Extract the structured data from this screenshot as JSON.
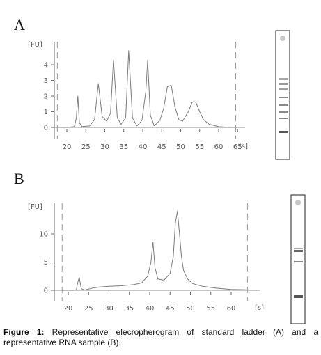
{
  "chart_data": [
    {
      "type": "line",
      "panel_label": "A",
      "ylabel": "[FU]",
      "x_unit": "[s]",
      "x_ticks": [
        20,
        25,
        30,
        35,
        40,
        45,
        50,
        55,
        60,
        65
      ],
      "x_tick_labels": [
        "20",
        "25",
        "30",
        "35",
        "40",
        "45",
        "50",
        "55",
        "60",
        "65"
      ],
      "y_ticks": [
        0,
        1,
        2,
        3,
        4
      ],
      "y_tick_labels": [
        "0",
        "1",
        "2",
        "3",
        "4"
      ],
      "xlim": [
        17.5,
        67
      ],
      "ylim": [
        -0.2,
        5.5
      ],
      "marker_lines_x": [
        17.5,
        64.5
      ],
      "series": [
        {
          "x": [
            17.5,
            20,
            22,
            22.5,
            22.9,
            23.3,
            24,
            26,
            27.3,
            28.3,
            29.3,
            30.5,
            31.5,
            32.3,
            33.3,
            34.3,
            35.5,
            36.3,
            37.3,
            38.5,
            39.8,
            40.8,
            41.3,
            42.0,
            43.0,
            44.5,
            45.5,
            46.5,
            47.5,
            48.5,
            49.5,
            50.5,
            52,
            53,
            53.5,
            54,
            55,
            56,
            57.5,
            60,
            62,
            64.5
          ],
          "y": [
            0,
            0,
            0.05,
            0.6,
            2.0,
            0.3,
            0.05,
            0.1,
            0.5,
            2.8,
            0.7,
            0.4,
            0.9,
            4.3,
            0.6,
            0.2,
            0.6,
            4.9,
            0.6,
            0.1,
            0.45,
            2.3,
            4.3,
            0.8,
            0.1,
            0.45,
            1.2,
            2.6,
            2.7,
            1.3,
            0.5,
            0.4,
            1.0,
            1.6,
            1.65,
            1.6,
            1.0,
            0.5,
            0.2,
            0.05,
            0.02,
            0.0
          ]
        }
      ]
    },
    {
      "type": "line",
      "panel_label": "B",
      "ylabel": "[FU]",
      "x_unit": "[s]",
      "x_ticks": [
        20,
        25,
        30,
        35,
        40,
        45,
        50,
        55,
        60
      ],
      "x_tick_labels": [
        "20",
        "25",
        "30",
        "35",
        "40",
        "45",
        "50",
        "55",
        "60"
      ],
      "y_ticks": [
        0,
        5,
        10
      ],
      "y_tick_labels": [
        "0",
        "5",
        "10"
      ],
      "xlim": [
        18.5,
        65
      ],
      "ylim": [
        -0.5,
        15.5
      ],
      "marker_lines_x": [
        18.5,
        64
      ],
      "series": [
        {
          "x": [
            18.5,
            21,
            22,
            22.3,
            22.7,
            23.2,
            24,
            26,
            28,
            30,
            33,
            36,
            38,
            39.5,
            40.3,
            40.8,
            41.3,
            42.0,
            43.5,
            45.0,
            45.8,
            46.3,
            46.8,
            47.2,
            47.8,
            48.3,
            49.3,
            50.5,
            53,
            56,
            60,
            64
          ],
          "y": [
            0,
            0,
            0.1,
            1.3,
            2.3,
            0.3,
            0.05,
            0.4,
            0.6,
            0.7,
            0.8,
            1.0,
            1.3,
            2.5,
            5.0,
            8.5,
            4.0,
            2.0,
            1.8,
            3.0,
            6.0,
            12.0,
            14.0,
            11.0,
            6.0,
            3.5,
            2.0,
            1.2,
            0.7,
            0.4,
            0.15,
            0.1
          ]
        }
      ]
    }
  ],
  "panel_a": {
    "letter": "A",
    "ylabel": "[FU]",
    "xunit": "[s]",
    "yticks": [
      "0",
      "1",
      "2",
      "3",
      "4"
    ],
    "xticks": [
      "20",
      "25",
      "30",
      "35",
      "40",
      "45",
      "50",
      "55",
      "60",
      "65"
    ]
  },
  "panel_b": {
    "letter": "B",
    "ylabel": "[FU]",
    "xunit": "[s]",
    "yticks": [
      "0",
      "5",
      "10"
    ],
    "xticks": [
      "20",
      "25",
      "30",
      "35",
      "40",
      "45",
      "50",
      "55",
      "60"
    ]
  },
  "gel_a": {
    "band_count": 8
  },
  "gel_b": {
    "band_count": 4
  },
  "colors": {
    "trace": "#7a7a7a",
    "axis": "#666666",
    "marker_line": "#9a9a9a",
    "gel_bg": "#ffffff",
    "gel_band": "#8a8a8a",
    "gel_dark_band": "#555555",
    "text": "#111111"
  },
  "caption": {
    "label": "Figure 1:",
    "text": " Representative elecropherogram of standard ladder (A) and a representative RNA sample (B)."
  }
}
